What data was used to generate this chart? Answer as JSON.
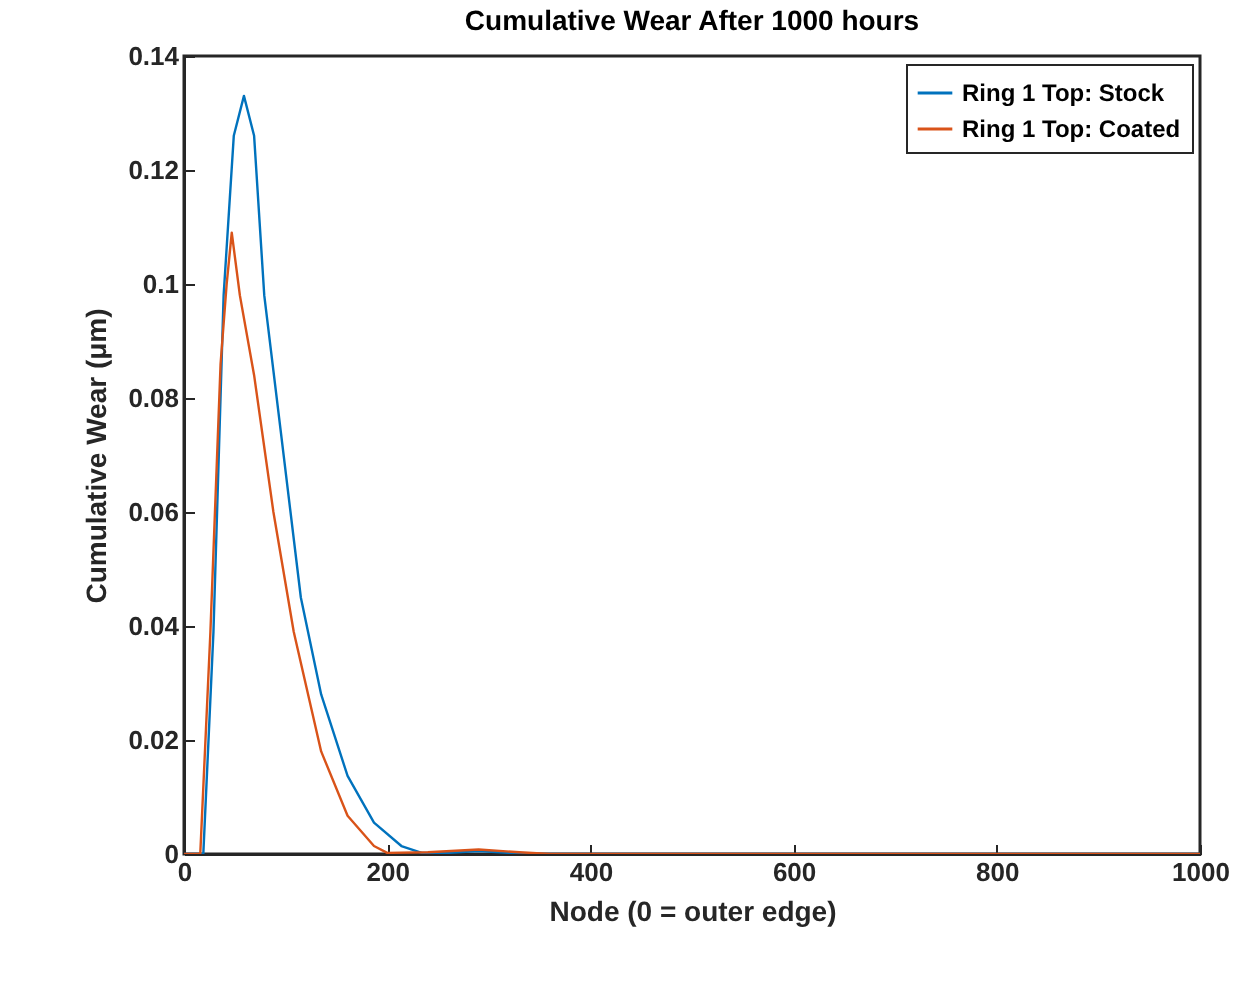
{
  "chart_data": {
    "type": "line",
    "title": "Cumulative Wear After 1000 hours",
    "xlabel": "Node (0 = outer edge)",
    "ylabel": "Cumulative Wear (μm)",
    "xlim": [
      0,
      1000
    ],
    "xticks": [
      0,
      200,
      400,
      600,
      800,
      1000
    ],
    "ylim": [
      0,
      0.14
    ],
    "yticks": [
      0,
      0.02,
      0.04,
      0.06,
      0.08,
      0.1,
      0.12,
      0.14
    ],
    "grid": false,
    "legend": "top right",
    "marker": "none",
    "line_style": "solid",
    "series": [
      {
        "name": "Ring 1 Top: Stock",
        "color": "#0072bd",
        "x": [
          0,
          19,
          29,
          39,
          49,
          59,
          69,
          79,
          95,
          115,
          135,
          161,
          187,
          214,
          234,
          260,
          290,
          320,
          350,
          1000
        ],
        "values": [
          0,
          0,
          0.039,
          0.098,
          0.126,
          0.133,
          0.126,
          0.098,
          0.0745,
          0.045,
          0.028,
          0.0137,
          0.0055,
          0.0014,
          0.0002,
          0.0002,
          0.0005,
          0.0002,
          0,
          0
        ]
      },
      {
        "name": "Ring 1 Top: Coated",
        "color": "#d95319",
        "x": [
          0,
          16,
          26,
          36,
          42,
          47,
          55,
          69,
          88,
          108,
          135,
          161,
          187,
          200,
          240,
          290,
          330,
          360,
          1000
        ],
        "values": [
          0,
          0,
          0.039,
          0.086,
          0.1,
          0.109,
          0.098,
          0.084,
          0.06,
          0.039,
          0.018,
          0.0067,
          0.0014,
          0.0002,
          0.0003,
          0.0008,
          0.0003,
          0,
          0
        ]
      }
    ]
  }
}
